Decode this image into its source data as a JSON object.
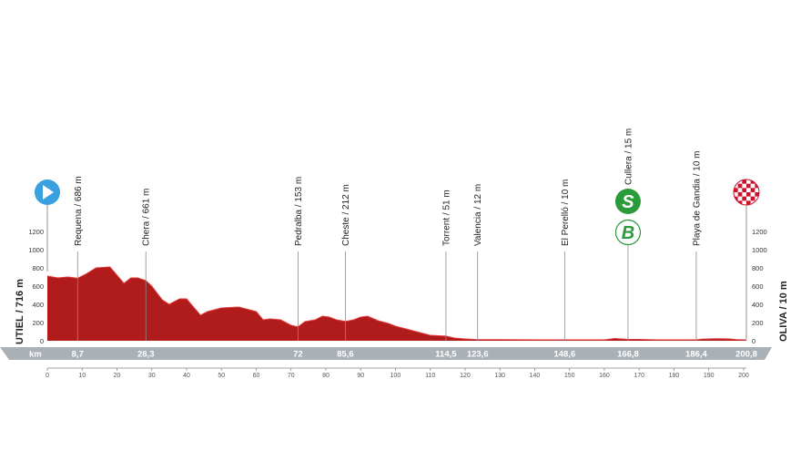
{
  "chart_data": {
    "type": "area",
    "title": "",
    "xlabel": "km",
    "ylabel": "",
    "xlim": [
      0,
      200.8
    ],
    "ylim": [
      0,
      1300
    ],
    "x_ticks": [
      0,
      10,
      20,
      30,
      40,
      50,
      60,
      70,
      80,
      90,
      100,
      110,
      120,
      130,
      140,
      150,
      160,
      170,
      180,
      190,
      200
    ],
    "y_ticks": [
      0,
      200,
      400,
      600,
      800,
      1000,
      1200
    ],
    "start": {
      "label": "UTIEL / 716 m",
      "icon": "start-play-icon",
      "color": "#3aa0e0"
    },
    "finish": {
      "label": "OLIVA / 10 m",
      "icon": "finish-checkered-icon",
      "color": "#d0112b"
    },
    "fill_color": "#b01b1b",
    "profile": {
      "x": [
        0,
        3,
        6,
        8.7,
        11,
        14,
        18,
        20,
        22,
        24,
        26,
        28.3,
        30,
        33,
        35,
        38,
        40,
        42,
        44,
        46,
        50,
        55,
        60,
        62,
        64,
        67,
        70,
        72,
        74,
        77,
        79,
        81,
        83,
        85.6,
        88,
        90,
        92,
        95,
        98,
        100,
        103,
        106,
        110,
        114.5,
        117,
        120,
        123.6,
        130,
        140,
        148.6,
        155,
        160,
        163,
        166.8,
        170,
        175,
        180,
        185,
        186.4,
        188,
        192,
        196,
        198,
        200.8
      ],
      "y": [
        710,
        690,
        700,
        686,
        730,
        800,
        810,
        720,
        630,
        690,
        690,
        661,
        600,
        450,
        400,
        460,
        460,
        370,
        280,
        320,
        360,
        370,
        320,
        230,
        240,
        230,
        170,
        153,
        210,
        230,
        270,
        260,
        230,
        212,
        230,
        260,
        270,
        220,
        190,
        160,
        130,
        100,
        60,
        51,
        30,
        20,
        12,
        12,
        10,
        10,
        10,
        10,
        25,
        15,
        15,
        10,
        10,
        10,
        10,
        18,
        22,
        20,
        12,
        10
      ]
    },
    "checkpoints": [
      {
        "label": "Requena / 686 m",
        "km": 8.7,
        "km_label": "8,7",
        "elev": 686
      },
      {
        "label": "Chera / 661 m",
        "km": 28.3,
        "km_label": "28,3",
        "elev": 661
      },
      {
        "label": "Pedralba / 153 m",
        "km": 72,
        "km_label": "72",
        "elev": 153
      },
      {
        "label": "Cheste / 212 m",
        "km": 85.6,
        "km_label": "85,6",
        "elev": 212
      },
      {
        "label": "Torrent / 51 m",
        "km": 114.5,
        "km_label": "114,5",
        "elev": 51
      },
      {
        "label": "Valencia / 12 m",
        "km": 123.6,
        "km_label": "123,6",
        "elev": 12
      },
      {
        "label": "El Perelló / 10 m",
        "km": 148.6,
        "km_label": "148,6",
        "elev": 10
      },
      {
        "label": "Cullera / 15 m",
        "km": 166.8,
        "km_label": "166,8",
        "elev": 15,
        "badges": [
          {
            "letter": "S",
            "name": "sprint-badge-icon",
            "color": "#2a9a3a"
          },
          {
            "letter": "B",
            "name": "bonus-badge-icon",
            "color": "#2a9a3a"
          }
        ]
      },
      {
        "label": "Playa de Gandia / 10 m",
        "km": 186.4,
        "km_label": "186,4",
        "elev": 10
      }
    ],
    "finish_km_label": "200,8",
    "grid": false
  }
}
